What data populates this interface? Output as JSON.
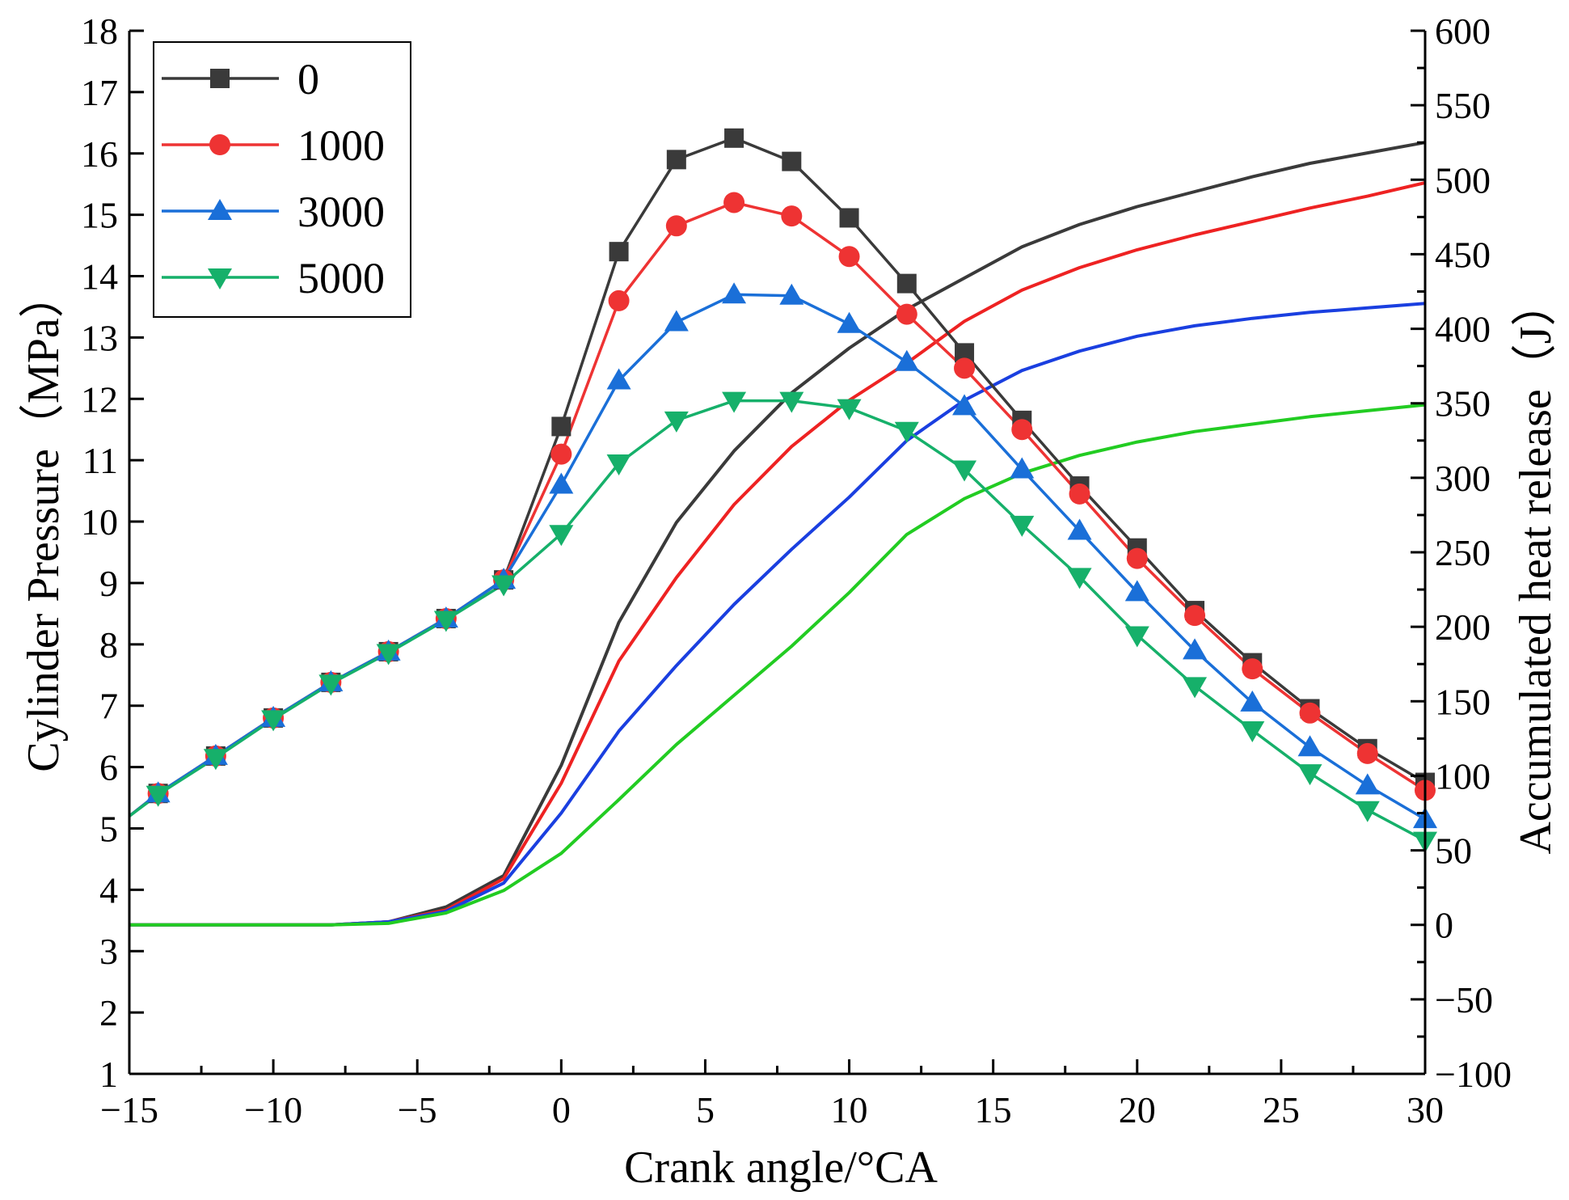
{
  "chart_data": {
    "type": "line",
    "xlabel": "Crank angle/°CA",
    "ylabel": "Cylinder Pressure（MPa）",
    "y2label": "Accumulated heat release（J）",
    "xlim": [
      -15,
      30
    ],
    "ylim": [
      1,
      18
    ],
    "y2lim": [
      -100,
      600
    ],
    "x_ticks": [
      -15,
      -10,
      -5,
      0,
      5,
      10,
      15,
      20,
      25,
      30
    ],
    "x_tick_labels": [
      "−15",
      "−10",
      "−5",
      "0",
      "5",
      "10",
      "15",
      "20",
      "25",
      "30"
    ],
    "y_ticks": [
      1,
      2,
      3,
      4,
      5,
      6,
      7,
      8,
      9,
      10,
      11,
      12,
      13,
      14,
      15,
      16,
      17,
      18
    ],
    "y_tick_labels": [
      "1",
      "2",
      "3",
      "4",
      "5",
      "6",
      "7",
      "8",
      "9",
      "10",
      "11",
      "12",
      "13",
      "14",
      "15",
      "16",
      "17",
      "18"
    ],
    "y2_ticks": [
      -100,
      -50,
      0,
      50,
      100,
      150,
      200,
      250,
      300,
      350,
      400,
      450,
      500,
      550,
      600
    ],
    "y2_tick_labels": [
      "−100",
      "−50",
      "0",
      "50",
      "100",
      "150",
      "200",
      "250",
      "300",
      "350",
      "400",
      "450",
      "500",
      "550",
      "600"
    ],
    "legend_position": "top-left",
    "pressure_marker_x": [
      -14,
      -12,
      -10,
      -8,
      -6,
      -4,
      -2,
      0,
      2,
      4,
      6,
      8,
      10,
      12,
      14,
      16,
      18,
      20,
      22,
      24,
      26,
      28,
      30
    ],
    "pressure_series": [
      {
        "name": "0",
        "color": "#3a3a3a",
        "marker": "square",
        "x": [
          -15,
          -14,
          -12,
          -10,
          -8,
          -6,
          -4,
          -2,
          0,
          2,
          4,
          6,
          8,
          10,
          12,
          14,
          16,
          18,
          20,
          22,
          24,
          26,
          28,
          30
        ],
        "y": [
          5.2,
          5.57,
          6.18,
          6.8,
          7.38,
          7.88,
          8.42,
          9.05,
          11.55,
          14.4,
          15.9,
          16.25,
          15.87,
          14.95,
          13.88,
          12.75,
          11.65,
          10.58,
          9.57,
          8.55,
          7.7,
          6.95,
          6.3,
          5.75
        ]
      },
      {
        "name": "1000",
        "color": "#ee3333",
        "marker": "circle",
        "x": [
          -15,
          -14,
          -12,
          -10,
          -8,
          -6,
          -4,
          -2,
          0,
          2,
          4,
          6,
          8,
          10,
          12,
          14,
          16,
          18,
          20,
          22,
          24,
          26,
          28,
          30
        ],
        "y": [
          5.2,
          5.57,
          6.18,
          6.8,
          7.38,
          7.88,
          8.42,
          9.05,
          11.1,
          13.6,
          14.82,
          15.2,
          14.98,
          14.32,
          13.38,
          12.5,
          11.5,
          10.45,
          9.4,
          8.47,
          7.6,
          6.88,
          6.22,
          5.62
        ]
      },
      {
        "name": "3000",
        "color": "#1a6fd8",
        "marker": "triangle-up",
        "x": [
          -15,
          -14,
          -12,
          -10,
          -8,
          -6,
          -4,
          -2,
          0,
          2,
          4,
          6,
          8,
          10,
          12,
          14,
          16,
          18,
          20,
          22,
          24,
          26,
          28,
          30
        ],
        "y": [
          5.2,
          5.57,
          6.18,
          6.8,
          7.38,
          7.88,
          8.42,
          9.05,
          10.6,
          12.3,
          13.25,
          13.7,
          13.68,
          13.22,
          12.6,
          11.88,
          10.85,
          9.85,
          8.85,
          7.9,
          7.05,
          6.32,
          5.7,
          5.15
        ]
      },
      {
        "name": "5000",
        "color": "#16b06a",
        "marker": "triangle-down",
        "x": [
          -15,
          -14,
          -12,
          -10,
          -8,
          -6,
          -4,
          -2,
          0,
          2,
          4,
          6,
          8,
          10,
          12,
          14,
          16,
          18,
          20,
          22,
          24,
          26,
          28,
          30
        ],
        "y": [
          5.2,
          5.55,
          6.15,
          6.78,
          7.36,
          7.86,
          8.4,
          8.98,
          9.8,
          10.95,
          11.65,
          11.97,
          11.97,
          11.85,
          11.48,
          10.85,
          9.95,
          9.1,
          8.15,
          7.32,
          6.6,
          5.9,
          5.3,
          4.8
        ]
      }
    ],
    "heat_release_series": [
      {
        "name": "0",
        "color": "#3a3a3a",
        "x": [
          -15,
          -10,
          -8,
          -6,
          -4,
          -2,
          0,
          2,
          4,
          6,
          8,
          10,
          12,
          14,
          16,
          18,
          20,
          22,
          24,
          26,
          28,
          30
        ],
        "y": [
          0,
          0,
          0,
          2,
          12,
          33,
          107,
          203,
          270,
          318,
          357,
          387,
          413,
          434,
          455,
          470,
          482,
          492,
          502,
          511,
          518,
          525
        ]
      },
      {
        "name": "1000",
        "color": "#ee2222",
        "x": [
          -15,
          -10,
          -8,
          -6,
          -4,
          -2,
          0,
          2,
          4,
          6,
          8,
          10,
          12,
          14,
          16,
          18,
          20,
          22,
          24,
          26,
          28,
          30
        ],
        "y": [
          0,
          0,
          0,
          2,
          10,
          31,
          95,
          177,
          233,
          282,
          321,
          352,
          377,
          405,
          426,
          441,
          453,
          463,
          472,
          481,
          489,
          498
        ]
      },
      {
        "name": "3000",
        "color": "#1a3fe0",
        "x": [
          -15,
          -10,
          -8,
          -6,
          -4,
          -2,
          0,
          2,
          4,
          6,
          8,
          10,
          12,
          14,
          16,
          18,
          20,
          22,
          24,
          26,
          28,
          30
        ],
        "y": [
          0,
          0,
          0,
          2,
          9,
          28,
          75,
          130,
          174,
          215,
          252,
          287,
          325,
          352,
          372,
          385,
          395,
          402,
          407,
          411,
          414,
          417
        ]
      },
      {
        "name": "5000",
        "color": "#22cc22",
        "x": [
          -15,
          -10,
          -8,
          -6,
          -4,
          -2,
          0,
          2,
          4,
          6,
          8,
          10,
          12,
          14,
          16,
          18,
          20,
          22,
          24,
          26,
          28,
          30
        ],
        "y": [
          0,
          0,
          0,
          1,
          8,
          23,
          48,
          84,
          121,
          154,
          187,
          223,
          262,
          286,
          303,
          315,
          324,
          331,
          336,
          341,
          345,
          349
        ]
      }
    ]
  }
}
